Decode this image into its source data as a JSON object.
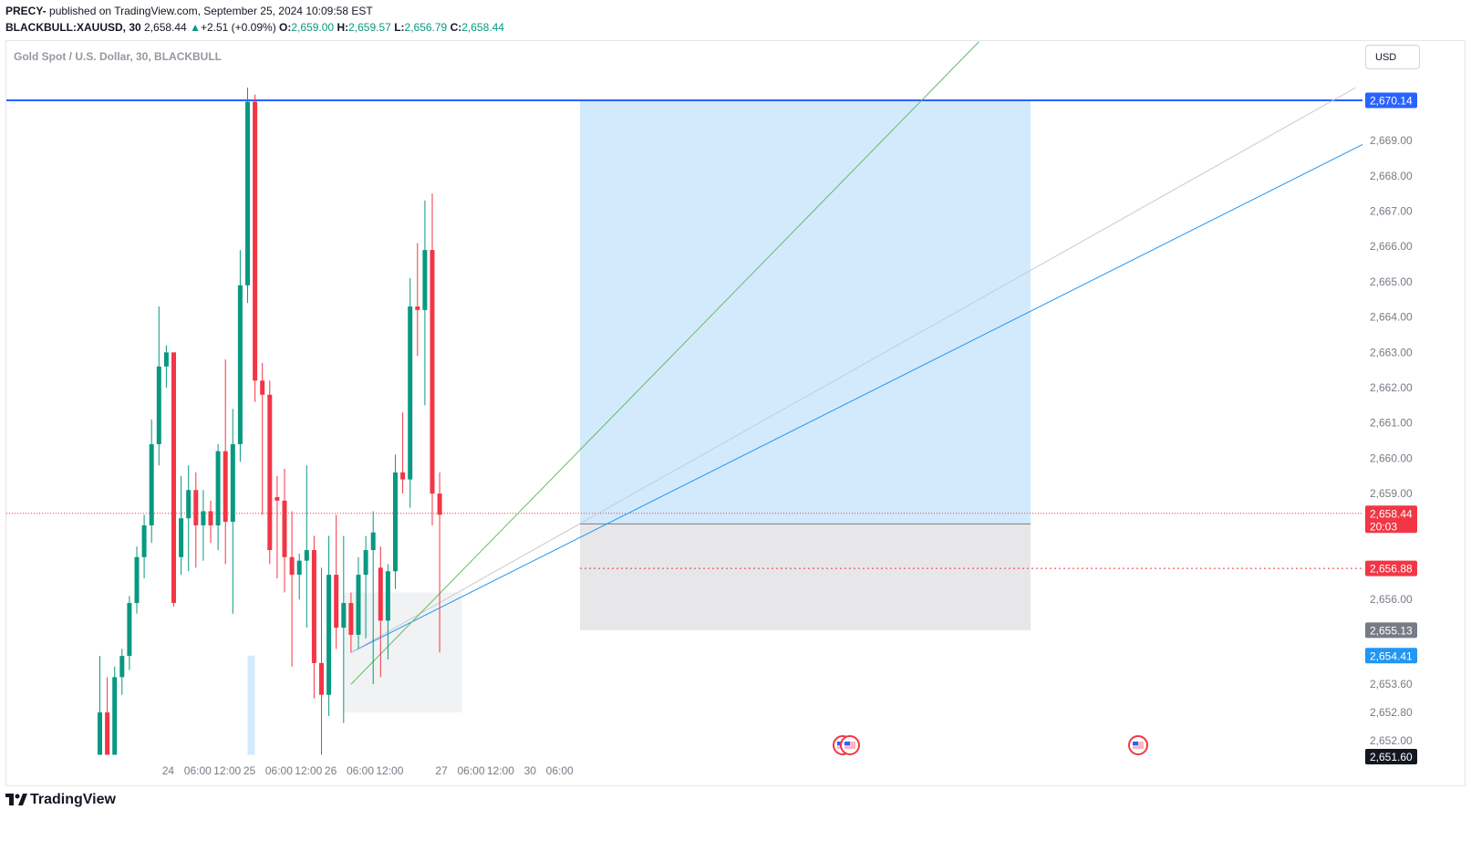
{
  "header": {
    "author": "PRECY-",
    "published_text": " published on TradingView.com, September 25, 2024 10:09:58 EST",
    "symbol": "BLACKBULL:XAUUSD, 30",
    "last": "2,658.44",
    "change": "+2.51 (+0.09%)",
    "o_label": "O:",
    "o_value": "2,659.00",
    "h_label": "H:",
    "h_value": "2,659.57",
    "l_label": "L:",
    "l_value": "2,656.79",
    "c_label": "C:",
    "c_value": "2,658.44"
  },
  "legend_title": "Gold Spot / U.S. Dollar, 30, BLACKBULL",
  "currency": "USD",
  "footer": {
    "brand": "TradingView"
  },
  "colors": {
    "up": "#089981",
    "down": "#f23645",
    "accent": "#2962ff",
    "grid": "#ffffff"
  },
  "chart_data": {
    "type": "candlestick",
    "title": "Gold Spot / U.S. Dollar, 30, BLACKBULL",
    "ylim": [
      2651.4,
      2671.8
    ],
    "y_ticks": [
      2652.0,
      2652.8,
      2653.6,
      2656.0,
      2659.0,
      2660.0,
      2661.0,
      2662.0,
      2663.0,
      2664.0,
      2665.0,
      2666.0,
      2667.0,
      2668.0,
      2669.0
    ],
    "y_tick_labels": [
      "2,652.00",
      "2,652.80",
      "2,653.60",
      "2,656.00",
      "2,659.00",
      "2,660.00",
      "2,661.00",
      "2,662.00",
      "2,663.00",
      "2,664.00",
      "2,665.00",
      "2,666.00",
      "2,667.00",
      "2,668.00",
      "2,669.00"
    ],
    "x_tick_labels": [
      "24",
      "06:00",
      "12:00",
      "25",
      "06:00",
      "12:00",
      "26",
      "06:00",
      "12:00",
      "27",
      "06:00",
      "12:00",
      "30",
      "06:00"
    ],
    "x_tick_index": [
      -56,
      -52,
      -48,
      -45,
      -41,
      -37,
      -34,
      -30,
      -26,
      -19,
      -15,
      -11,
      -7,
      -3
    ],
    "candles": [
      {
        "i": -65,
        "o": 2651.6,
        "h": 2654.4,
        "l": 2651.6,
        "c": 2652.8
      },
      {
        "i": -64,
        "o": 2652.8,
        "h": 2653.8,
        "l": 2651.6,
        "c": 2651.6
      },
      {
        "i": -63,
        "o": 2651.6,
        "h": 2654.1,
        "l": 2651.6,
        "c": 2653.8
      },
      {
        "i": -62,
        "o": 2653.8,
        "h": 2654.6,
        "l": 2653.3,
        "c": 2654.4
      },
      {
        "i": -61,
        "o": 2654.4,
        "h": 2656.1,
        "l": 2654.0,
        "c": 2655.9
      },
      {
        "i": -60,
        "o": 2655.9,
        "h": 2657.5,
        "l": 2655.6,
        "c": 2657.2
      },
      {
        "i": -59,
        "o": 2657.2,
        "h": 2658.4,
        "l": 2656.6,
        "c": 2658.1
      },
      {
        "i": -58,
        "o": 2658.1,
        "h": 2661.1,
        "l": 2657.6,
        "c": 2660.4
      },
      {
        "i": -57,
        "o": 2660.4,
        "h": 2664.3,
        "l": 2659.8,
        "c": 2662.6
      },
      {
        "i": -56,
        "o": 2662.6,
        "h": 2663.2,
        "l": 2662.0,
        "c": 2663.0
      },
      {
        "i": -55,
        "o": 2663.0,
        "h": 2663.0,
        "l": 2655.8,
        "c": 2655.9
      },
      {
        "i": -54,
        "o": 2657.2,
        "h": 2659.5,
        "l": 2656.7,
        "c": 2658.3
      },
      {
        "i": -53,
        "o": 2658.3,
        "h": 2659.8,
        "l": 2656.8,
        "c": 2659.1
      },
      {
        "i": -52,
        "o": 2659.1,
        "h": 2659.6,
        "l": 2656.9,
        "c": 2658.1
      },
      {
        "i": -51,
        "o": 2658.1,
        "h": 2659.1,
        "l": 2657.1,
        "c": 2658.5
      },
      {
        "i": -50,
        "o": 2658.5,
        "h": 2658.8,
        "l": 2657.6,
        "c": 2658.1
      },
      {
        "i": -49,
        "o": 2658.1,
        "h": 2660.4,
        "l": 2657.4,
        "c": 2660.2
      },
      {
        "i": -48,
        "o": 2660.2,
        "h": 2662.8,
        "l": 2657.0,
        "c": 2658.2
      },
      {
        "i": -47,
        "o": 2658.2,
        "h": 2661.4,
        "l": 2655.6,
        "c": 2660.4
      },
      {
        "i": -46,
        "o": 2660.4,
        "h": 2665.9,
        "l": 2659.9,
        "c": 2664.9
      },
      {
        "i": -45,
        "o": 2664.9,
        "h": 2670.5,
        "l": 2664.4,
        "c": 2670.1
      },
      {
        "i": -44,
        "o": 2670.1,
        "h": 2670.3,
        "l": 2661.6,
        "c": 2662.2
      },
      {
        "i": -43,
        "o": 2662.2,
        "h": 2662.7,
        "l": 2658.4,
        "c": 2661.8
      },
      {
        "i": -42,
        "o": 2661.8,
        "h": 2662.2,
        "l": 2657.0,
        "c": 2657.4
      },
      {
        "i": -41,
        "o": 2658.9,
        "h": 2659.5,
        "l": 2656.6,
        "c": 2658.8
      },
      {
        "i": -40,
        "o": 2658.8,
        "h": 2659.7,
        "l": 2656.2,
        "c": 2657.2
      },
      {
        "i": -39,
        "o": 2657.2,
        "h": 2658.5,
        "l": 2654.1,
        "c": 2656.7
      },
      {
        "i": -38,
        "o": 2656.7,
        "h": 2657.3,
        "l": 2656.0,
        "c": 2657.1
      },
      {
        "i": -37,
        "o": 2657.1,
        "h": 2659.8,
        "l": 2655.2,
        "c": 2657.4
      },
      {
        "i": -36,
        "o": 2657.4,
        "h": 2657.8,
        "l": 2653.2,
        "c": 2654.2
      },
      {
        "i": -35,
        "o": 2654.2,
        "h": 2656.9,
        "l": 2651.6,
        "c": 2653.3
      },
      {
        "i": -34,
        "o": 2653.3,
        "h": 2657.8,
        "l": 2652.7,
        "c": 2656.7
      },
      {
        "i": -33,
        "o": 2656.7,
        "h": 2658.4,
        "l": 2654.6,
        "c": 2655.2
      },
      {
        "i": -32,
        "o": 2655.2,
        "h": 2657.8,
        "l": 2652.5,
        "c": 2655.9
      },
      {
        "i": -31,
        "o": 2655.9,
        "h": 2656.2,
        "l": 2654.5,
        "c": 2655.0
      },
      {
        "i": -30,
        "o": 2655.0,
        "h": 2657.2,
        "l": 2654.6,
        "c": 2656.7
      },
      {
        "i": -29,
        "o": 2656.7,
        "h": 2657.8,
        "l": 2654.9,
        "c": 2657.4
      },
      {
        "i": -28,
        "o": 2657.4,
        "h": 2658.5,
        "l": 2653.6,
        "c": 2657.9
      },
      {
        "i": -27,
        "o": 2656.9,
        "h": 2657.5,
        "l": 2653.8,
        "c": 2655.4
      },
      {
        "i": -26,
        "o": 2655.4,
        "h": 2657.0,
        "l": 2654.3,
        "c": 2656.8
      },
      {
        "i": -25,
        "o": 2656.8,
        "h": 2660.1,
        "l": 2656.3,
        "c": 2659.6
      },
      {
        "i": -24,
        "o": 2659.6,
        "h": 2661.3,
        "l": 2659.0,
        "c": 2659.4
      },
      {
        "i": -23,
        "o": 2659.4,
        "h": 2665.1,
        "l": 2658.6,
        "c": 2664.3
      },
      {
        "i": -22,
        "o": 2664.3,
        "h": 2666.1,
        "l": 2662.9,
        "c": 2664.2
      },
      {
        "i": -21,
        "o": 2664.2,
        "h": 2667.3,
        "l": 2661.5,
        "c": 2665.9
      },
      {
        "i": -20,
        "o": 2665.9,
        "h": 2667.5,
        "l": 2658.1,
        "c": 2659.0
      },
      {
        "i": -19,
        "o": 2659.0,
        "h": 2659.6,
        "l": 2654.5,
        "c": 2658.4
      }
    ],
    "price_lines": [
      {
        "label": "2,670.14",
        "value": 2670.14,
        "color": "#2962ff"
      },
      {
        "label": "2,658.44",
        "value": 2658.44,
        "sub": "20:03",
        "color": "#f23645"
      },
      {
        "label": "2,656.88",
        "value": 2656.88,
        "color": "#f23645"
      },
      {
        "label": "2,655.13",
        "value": 2655.13,
        "color": "#787b86"
      },
      {
        "label": "2,654.41",
        "value": 2654.41,
        "color": "#2196f3"
      },
      {
        "label": "2,651.60",
        "value": 2651.6,
        "color": "#131722"
      }
    ]
  }
}
